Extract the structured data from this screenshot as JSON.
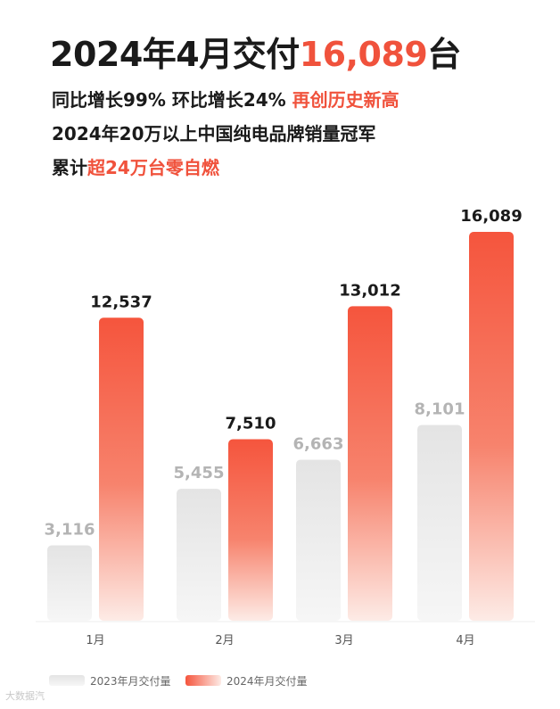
{
  "headline": {
    "prefix": "2024年4月交付",
    "highlight": "16,089",
    "suffix": "台"
  },
  "sublines": [
    {
      "plain": "同比增长99% 环比增长24% ",
      "highlight": "再创历史新高"
    },
    {
      "plain": "2024年20万以上中国纯电品牌销量冠军",
      "highlight": ""
    },
    {
      "plain": "累计",
      "highlight": "超24万台零自燃"
    }
  ],
  "colors": {
    "accent": "#f0523c",
    "bar_2024_top": "#f5553d",
    "bar_2024_bottom": "#fdebe6",
    "bar_2023_top": "#e4e4e4",
    "bar_2023_bottom": "#f6f6f6"
  },
  "chart_data": {
    "type": "bar",
    "categories": [
      "1月",
      "2月",
      "3月",
      "4月"
    ],
    "series": [
      {
        "name": "2023年月交付量",
        "values": [
          3116,
          5455,
          6663,
          8101
        ],
        "labels": [
          "3,116",
          "5,455",
          "6,663",
          "8,101"
        ]
      },
      {
        "name": "2024年月交付量",
        "values": [
          12537,
          7510,
          13012,
          16089
        ],
        "labels": [
          "12,537",
          "7,510",
          "13,012",
          "16,089"
        ]
      }
    ],
    "title": "",
    "xlabel": "",
    "ylabel": "",
    "ylim": [
      0,
      16089
    ],
    "grid": false,
    "legend_position": "bottom-left"
  },
  "watermark": "大数据汽"
}
